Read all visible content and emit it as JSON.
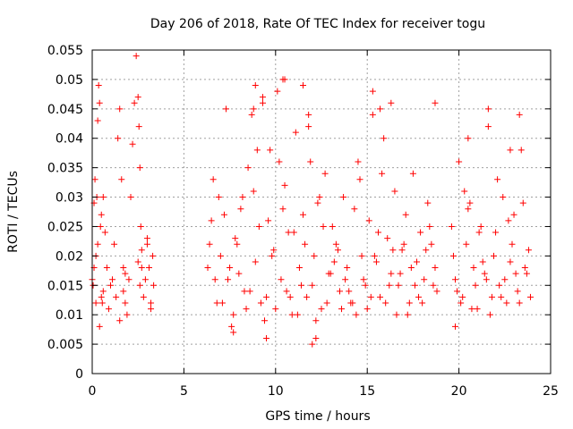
{
  "chart_data": {
    "type": "scatter",
    "title": "Day 206 of 2018, Rate Of TEC Index for receiver togu",
    "xlabel": "GPS time / hours",
    "ylabel": "ROTI / TECUs",
    "xlim": [
      0,
      25
    ],
    "ylim": [
      0,
      0.055
    ],
    "xticks": [
      0,
      5,
      10,
      15,
      20,
      25
    ],
    "xtick_labels": [
      "0",
      "5",
      "10",
      "15",
      "20",
      "25"
    ],
    "yticks": [
      0,
      0.005,
      0.01,
      0.015,
      0.02,
      0.025,
      0.03,
      0.035,
      0.04,
      0.045,
      0.05,
      0.055
    ],
    "ytick_labels": [
      "0",
      "0.005",
      "0.01",
      "0.015",
      "0.02",
      "0.025",
      "0.03",
      "0.035",
      "0.04",
      "0.045",
      "0.05",
      "0.055"
    ],
    "grid": true,
    "marker": "+",
    "marker_color": "#ff0000",
    "series": [
      {
        "x": [
          0.0,
          0.05,
          0.1,
          0.15,
          0.2,
          0.25,
          0.3,
          0.35,
          0.4,
          0.45,
          0.5,
          0.55,
          0.6,
          0.7,
          0.8,
          0.9,
          1.0,
          1.1,
          1.2,
          1.3,
          1.4,
          1.5,
          1.6,
          1.7,
          1.8,
          1.9,
          2.0,
          2.1,
          2.2,
          2.3,
          2.4,
          2.5,
          2.55,
          2.6,
          2.65,
          2.7,
          2.8,
          2.9,
          3.0,
          3.1,
          3.2,
          3.3,
          3.35,
          0.1,
          0.2,
          0.3,
          0.4,
          0.5,
          0.6,
          1.5,
          1.7,
          1.8,
          2.5,
          2.6,
          2.7,
          3.0,
          3.2,
          6.3,
          6.5,
          6.7,
          6.9,
          7.1,
          7.3,
          7.5,
          7.7,
          7.9,
          8.1,
          8.3,
          8.5,
          8.7,
          8.9,
          9.1,
          9.3,
          9.5,
          9.7,
          9.9,
          10.1,
          10.3,
          10.5,
          10.7,
          10.9,
          11.1,
          11.3,
          11.5,
          11.7,
          11.9,
          12.1,
          12.3,
          12.5,
          12.7,
          12.9,
          13.1,
          13.3,
          13.5,
          13.7,
          13.9,
          14.1,
          14.3,
          14.5,
          14.7,
          14.9,
          15.1,
          15.3,
          15.5,
          15.7,
          15.9,
          16.1,
          16.3,
          16.5,
          16.7,
          16.9,
          17.1,
          17.3,
          17.5,
          17.7,
          17.9,
          18.1,
          18.3,
          18.5,
          18.7,
          6.4,
          6.8,
          7.2,
          7.6,
          8.0,
          8.4,
          8.8,
          9.2,
          9.6,
          10.0,
          10.4,
          10.8,
          11.2,
          11.6,
          12.0,
          12.4,
          12.8,
          13.2,
          13.6,
          14.0,
          14.4,
          14.8,
          15.2,
          15.6,
          16.0,
          16.4,
          16.8,
          17.2,
          17.6,
          18.0,
          18.4,
          18.8,
          6.6,
          7.0,
          7.4,
          7.8,
          8.2,
          8.6,
          9.0,
          9.4,
          9.8,
          10.2,
          10.6,
          11.0,
          11.4,
          11.8,
          12.2,
          12.6,
          13.0,
          13.4,
          13.8,
          14.2,
          14.6,
          15.0,
          15.4,
          15.8,
          16.2,
          16.6,
          17.0,
          17.4,
          17.8,
          18.2,
          18.6,
          8.9,
          9.3,
          10.5,
          11.5,
          12.2,
          15.3,
          15.7,
          16.3,
          18.7,
          8.8,
          10.4,
          11.8,
          19.6,
          19.8,
          20.0,
          20.2,
          20.4,
          20.6,
          20.8,
          21.0,
          21.2,
          21.4,
          21.6,
          21.8,
          22.0,
          22.2,
          22.4,
          22.6,
          22.8,
          23.0,
          23.2,
          23.4,
          23.6,
          23.8,
          19.7,
          20.1,
          20.5,
          20.9,
          21.3,
          21.7,
          22.1,
          22.5,
          22.9,
          23.3,
          23.7,
          19.9,
          20.3,
          20.7,
          21.1,
          21.5,
          21.9,
          22.3,
          22.7,
          23.1,
          23.5,
          23.9,
          21.6,
          22.8,
          20.5,
          19.8,
          23.3,
          12.0,
          7.7,
          9.5
        ],
        "y": [
          0.016,
          0.015,
          0.029,
          0.033,
          0.02,
          0.03,
          0.043,
          0.049,
          0.046,
          0.025,
          0.013,
          0.012,
          0.014,
          0.024,
          0.018,
          0.011,
          0.015,
          0.016,
          0.022,
          0.013,
          0.04,
          0.045,
          0.033,
          0.018,
          0.012,
          0.01,
          0.016,
          0.03,
          0.039,
          0.046,
          0.054,
          0.047,
          0.042,
          0.035,
          0.025,
          0.018,
          0.013,
          0.016,
          0.022,
          0.018,
          0.012,
          0.02,
          0.015,
          0.018,
          0.012,
          0.022,
          0.008,
          0.027,
          0.03,
          0.009,
          0.014,
          0.017,
          0.019,
          0.015,
          0.021,
          0.023,
          0.011,
          0.018,
          0.026,
          0.016,
          0.03,
          0.012,
          0.045,
          0.018,
          0.01,
          0.022,
          0.028,
          0.014,
          0.035,
          0.044,
          0.019,
          0.025,
          0.046,
          0.013,
          0.038,
          0.021,
          0.048,
          0.016,
          0.032,
          0.024,
          0.01,
          0.041,
          0.018,
          0.027,
          0.013,
          0.036,
          0.02,
          0.029,
          0.011,
          0.034,
          0.017,
          0.025,
          0.022,
          0.014,
          0.03,
          0.018,
          0.012,
          0.028,
          0.036,
          0.02,
          0.015,
          0.026,
          0.044,
          0.019,
          0.013,
          0.04,
          0.023,
          0.017,
          0.031,
          0.015,
          0.021,
          0.027,
          0.012,
          0.034,
          0.019,
          0.024,
          0.016,
          0.029,
          0.022,
          0.018,
          0.022,
          0.012,
          0.027,
          0.008,
          0.017,
          0.011,
          0.031,
          0.012,
          0.026,
          0.011,
          0.028,
          0.013,
          0.01,
          0.022,
          0.015,
          0.03,
          0.012,
          0.019,
          0.011,
          0.014,
          0.01,
          0.016,
          0.013,
          0.024,
          0.012,
          0.021,
          0.017,
          0.01,
          0.015,
          0.012,
          0.025,
          0.014,
          0.033,
          0.02,
          0.016,
          0.023,
          0.03,
          0.014,
          0.038,
          0.009,
          0.02,
          0.036,
          0.014,
          0.024,
          0.015,
          0.042,
          0.009,
          0.025,
          0.017,
          0.021,
          0.016,
          0.012,
          0.033,
          0.011,
          0.02,
          0.034,
          0.015,
          0.01,
          0.022,
          0.018,
          0.013,
          0.021,
          0.015,
          0.049,
          0.047,
          0.05,
          0.049,
          0.006,
          0.048,
          0.045,
          0.046,
          0.046,
          0.045,
          0.05,
          0.044,
          0.025,
          0.016,
          0.036,
          0.013,
          0.022,
          0.029,
          0.018,
          0.011,
          0.025,
          0.017,
          0.042,
          0.013,
          0.024,
          0.015,
          0.03,
          0.012,
          0.019,
          0.027,
          0.014,
          0.038,
          0.018,
          0.021,
          0.02,
          0.012,
          0.028,
          0.015,
          0.019,
          0.01,
          0.033,
          0.016,
          0.022,
          0.012,
          0.017,
          0.014,
          0.031,
          0.011,
          0.024,
          0.016,
          0.02,
          0.013,
          0.026,
          0.017,
          0.029,
          0.013,
          0.045,
          0.038,
          0.04,
          0.008,
          0.044,
          0.005,
          0.007,
          0.006
        ]
      }
    ]
  }
}
